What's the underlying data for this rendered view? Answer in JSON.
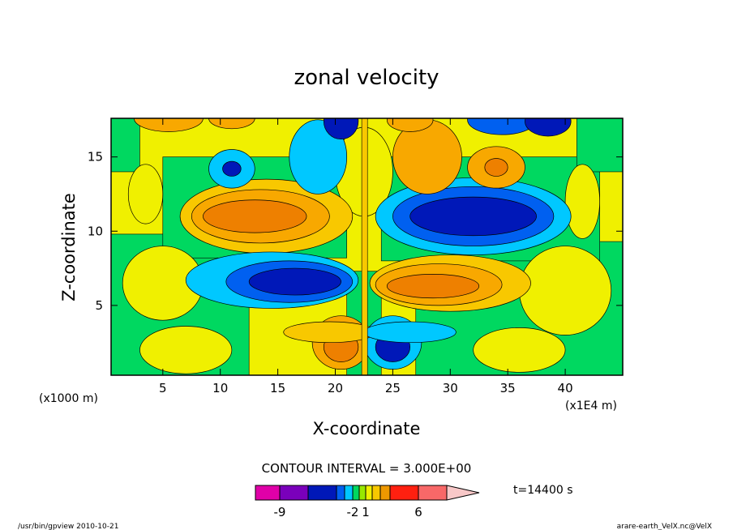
{
  "chart_data": {
    "type": "contour",
    "title": "zonal velocity",
    "xlabel": "X-coordinate",
    "ylabel": "Z-coordinate",
    "x_units_left": "(x1000 m)",
    "x_units_right": "(x1E4 m)",
    "xlim": [
      0.5,
      45
    ],
    "ylim": [
      0.3,
      17.6
    ],
    "x_ticks": [
      5,
      10,
      15,
      20,
      25,
      30,
      35,
      40
    ],
    "y_ticks": [
      5,
      10,
      15
    ],
    "contour_interval_label": "CONTOUR INTERVAL = 3.000E+00",
    "time_label": "t=14400 s",
    "colorbar": {
      "labels": [
        {
          "text": "-9",
          "index": 1
        },
        {
          "text": "-2",
          "index": 5
        },
        {
          "text": "1",
          "index": 7
        },
        {
          "text": "6",
          "index": 11
        }
      ],
      "colors": [
        "#e000a8",
        "#7a00bb",
        "#0018b8",
        "#0060f0",
        "#00c8ff",
        "#00d860",
        "#98e800",
        "#f0f000",
        "#f8c800",
        "#ee9800",
        "#ff2010",
        "#f86868"
      ],
      "overflow_color": "#f8c8c8"
    },
    "field_colors": {
      "background": "#f0f000",
      "green": "#00d860",
      "cyan": "#00c8ff",
      "blue": "#0018b8",
      "darkblue": "#0028d8",
      "midblue": "#0060f0",
      "orange": "#f8a800",
      "darkorange": "#ee8000",
      "lightorange": "#f8c800",
      "red": "#ff2010"
    },
    "features": [
      {
        "sign": "positive",
        "label": "upper-left jet",
        "x_range": [
          7.5,
          21.5
        ],
        "z_range": [
          9,
          13
        ],
        "peak": 9
      },
      {
        "sign": "negative",
        "label": "upper-right jet",
        "x_range": [
          24,
          40
        ],
        "z_range": [
          9,
          13.5
        ],
        "peak": -9
      },
      {
        "sign": "negative",
        "label": "lower-left jet",
        "x_range": [
          8,
          22
        ],
        "z_range": [
          5,
          8.3
        ],
        "peak": -9
      },
      {
        "sign": "positive",
        "label": "lower-right jet",
        "x_range": [
          23,
          38
        ],
        "z_range": [
          4.5,
          8.3
        ],
        "peak": 9
      }
    ]
  },
  "footer": {
    "left": "/usr/bin/gpview   2010-10-21",
    "right": "arare-earth_VelX.nc@VelX"
  }
}
